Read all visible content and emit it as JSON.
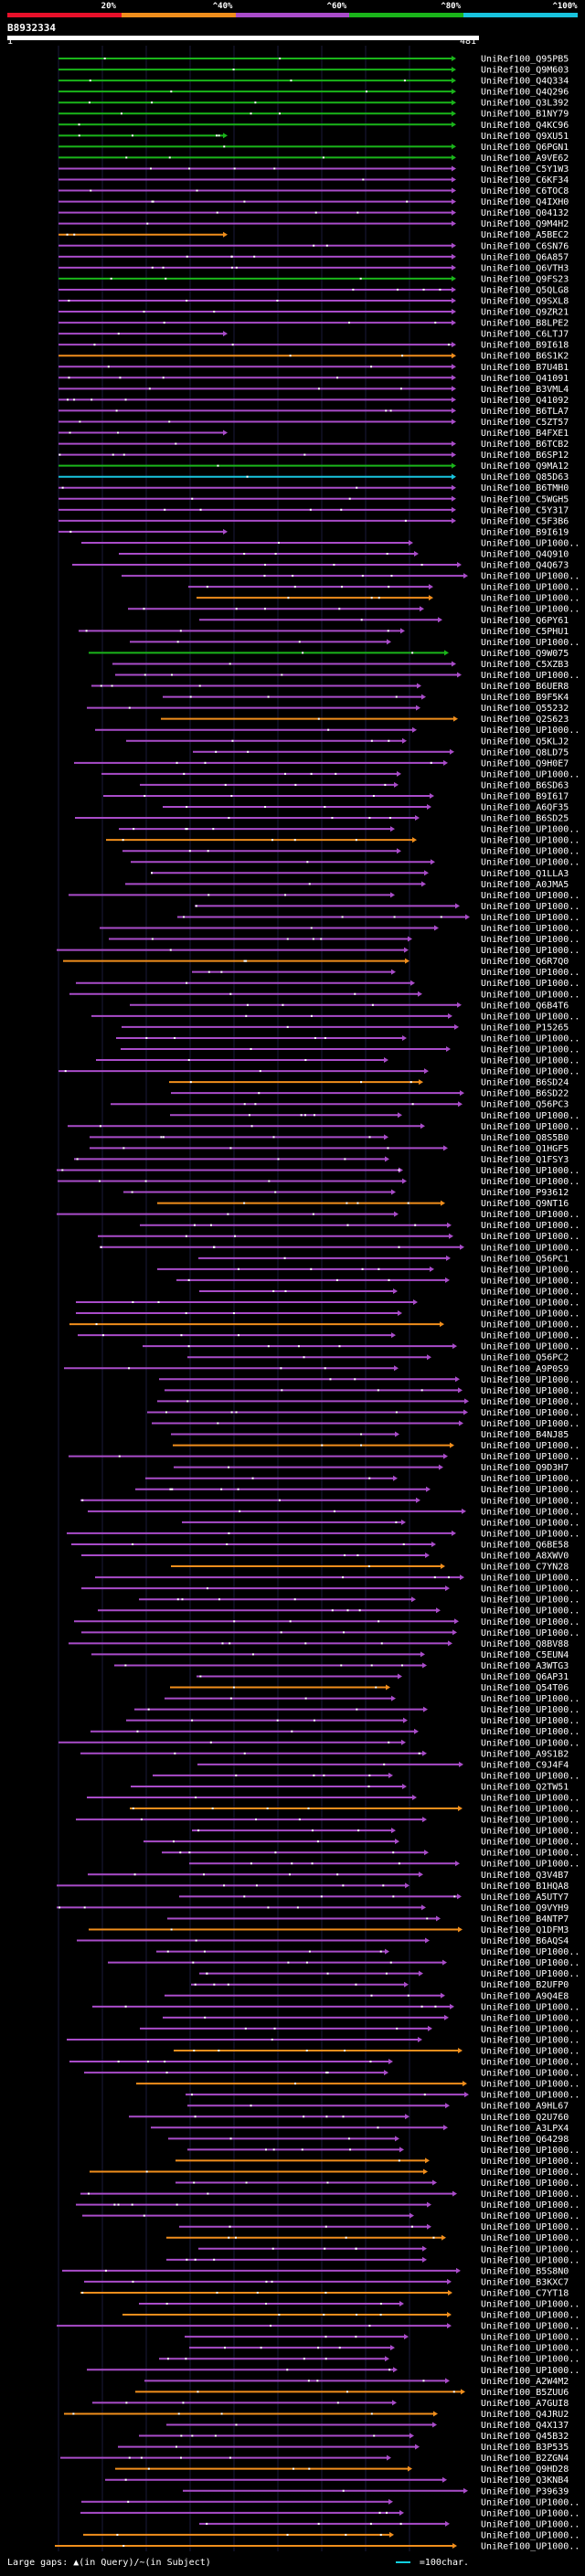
{
  "query": {
    "id": "B8932334",
    "start": "1",
    "end": "481"
  },
  "legend": {
    "labels": [
      "20%",
      "^40%",
      "^60%",
      "^80%",
      "^100%"
    ],
    "colors": [
      "#e8102a",
      "#f08e1c",
      "#a94cc9",
      "#1ab51a",
      "#18c4de"
    ]
  },
  "hits": [
    "UniRef100_Q95PB5",
    "UniRef100_Q9M603",
    "UniRef100_Q4Q334",
    "UniRef100_Q4Q296",
    "UniRef100_Q3L392",
    "UniRef100_B1NY79",
    "UniRef100_Q4KC96",
    "UniRef100_Q9XU51",
    "UniRef100_Q6PGN1",
    "UniRef100_A9VE62",
    "UniRef100_C5Y1W3",
    "UniRef100_C6KF34",
    "UniRef100_C6TOC8",
    "UniRef100_Q4IXH0",
    "UniRef100_Q04132",
    "UniRef100_Q9M4H2",
    "UniRef100_A5BEC2",
    "UniRef100_C6SN76",
    "UniRef100_Q6A857",
    "UniRef100_Q6VTH3",
    "UniRef100_Q9FS23",
    "UniRef100_Q5QLG8",
    "UniRef100_Q9SXL8",
    "UniRef100_Q9ZR21",
    "UniRef100_B8LPE2",
    "UniRef100_C6LTJ7",
    "UniRef100_B9I618",
    "UniRef100_B6S1K2",
    "UniRef100_B7U4B1",
    "UniRef100_Q41091",
    "UniRef100_B3VML4",
    "UniRef100_Q41092",
    "UniRef100_B6TLA7",
    "UniRef100_C5ZT57",
    "UniRef100_B4FXE1",
    "UniRef100_B6TCB2",
    "UniRef100_B6SP12",
    "UniRef100_Q9MA12",
    "UniRef100_Q85D63",
    "UniRef100_B6TMH0",
    "UniRef100_C5WGH5",
    "UniRef100_C5Y317",
    "UniRef100_C5F3B6",
    "UniRef100_B9I619",
    "UniRef100_UP1000..",
    "UniRef100_Q4Q910",
    "UniRef100_Q4Q673",
    "UniRef100_UP1000..",
    "UniRef100_UP1000..",
    "UniRef100_UP1000..",
    "UniRef100_UP1000..",
    "UniRef100_Q6PY61",
    "UniRef100_C5PHU1",
    "UniRef100_UP1000..",
    "UniRef100_Q9W075",
    "UniRef100_C5XZB3",
    "UniRef100_UP1000..",
    "UniRef100_B6UER8",
    "UniRef100_B9F5K4",
    "UniRef100_Q55232",
    "UniRef100_Q2S623",
    "UniRef100_UP1000..",
    "UniRef100_Q5KLJ2",
    "UniRef100_Q8LD75",
    "UniRef100_Q9H0E7",
    "UniRef100_UP1000..",
    "UniRef100_B6SD63",
    "UniRef100_B9I617",
    "UniRef100_A6QF35",
    "UniRef100_B6SD25",
    "UniRef100_UP1000..",
    "UniRef100_UP1000..",
    "UniRef100_UP1000..",
    "UniRef100_UP1000..",
    "UniRef100_Q1LLA3",
    "UniRef100_A0JMA5",
    "UniRef100_UP1000..",
    "UniRef100_UP1000..",
    "UniRef100_UP1000..",
    "UniRef100_UP1000..",
    "UniRef100_UP1000..",
    "UniRef100_UP1000..",
    "UniRef100_Q6R7Q0",
    "UniRef100_UP1000..",
    "UniRef100_UP1000..",
    "UniRef100_UP1000..",
    "UniRef100_Q6B4T6",
    "UniRef100_UP1000..",
    "UniRef100_P15265",
    "UniRef100_UP1000..",
    "UniRef100_UP1000..",
    "UniRef100_UP1000..",
    "UniRef100_UP1000..",
    "UniRef100_B6SD24",
    "UniRef100_B6SD22",
    "UniRef100_Q56PC3",
    "UniRef100_UP1000..",
    "UniRef100_UP1000..",
    "UniRef100_Q8S5B0",
    "UniRef100_Q1HGF5",
    "UniRef100_Q1FSY3",
    "UniRef100_UP1000..",
    "UniRef100_UP1000..",
    "UniRef100_P93612",
    "UniRef100_Q9NT16",
    "UniRef100_UP1000..",
    "UniRef100_UP1000..",
    "UniRef100_UP1000..",
    "UniRef100_UP1000..",
    "UniRef100_Q56PC1",
    "UniRef100_UP1000..",
    "UniRef100_UP1000..",
    "UniRef100_UP1000..",
    "UniRef100_UP1000..",
    "UniRef100_UP1000..",
    "UniRef100_UP1000..",
    "UniRef100_UP1000..",
    "UniRef100_UP1000..",
    "UniRef100_Q56PC2",
    "UniRef100_A9P0S9",
    "UniRef100_UP1000..",
    "UniRef100_UP1000..",
    "UniRef100_UP1000..",
    "UniRef100_UP1000..",
    "UniRef100_UP1000..",
    "UniRef100_B4NJ85",
    "UniRef100_UP1000..",
    "UniRef100_UP1000..",
    "UniRef100_Q9D3H7",
    "UniRef100_UP1000..",
    "UniRef100_UP1000..",
    "UniRef100_UP1000..",
    "UniRef100_UP1000..",
    "UniRef100_UP1000..",
    "UniRef100_UP1000..",
    "UniRef100_Q6BE58",
    "UniRef100_A8XWV0",
    "UniRef100_C7YN28",
    "UniRef100_UP1000..",
    "UniRef100_UP1000..",
    "UniRef100_UP1000..",
    "UniRef100_UP1000..",
    "UniRef100_UP1000..",
    "UniRef100_UP1000..",
    "UniRef100_Q8BV88",
    "UniRef100_C5EUN4",
    "UniRef100_A3WTG3",
    "UniRef100_Q6AP31",
    "UniRef100_Q54T06",
    "UniRef100_UP1000..",
    "UniRef100_UP1000..",
    "UniRef100_UP1000..",
    "UniRef100_UP1000..",
    "UniRef100_UP1000..",
    "UniRef100_A9S1B2",
    "UniRef100_C9J4F4",
    "UniRef100_UP1000..",
    "UniRef100_Q2TW51",
    "UniRef100_UP1000..",
    "UniRef100_UP1000..",
    "UniRef100_UP1000..",
    "UniRef100_UP1000..",
    "UniRef100_UP1000..",
    "UniRef100_UP1000..",
    "UniRef100_UP1000..",
    "UniRef100_Q3V4B7",
    "UniRef100_B1HQA8",
    "UniRef100_A5UTY7",
    "UniRef100_Q9VYH9",
    "UniRef100_B4NTP7",
    "UniRef100_Q1DFM3",
    "UniRef100_B6AQS4",
    "UniRef100_UP1000..",
    "UniRef100_UP1000..",
    "UniRef100_UP1000..",
    "UniRef100_B2UFP0",
    "UniRef100_A9Q4E8",
    "UniRef100_UP1000..",
    "UniRef100_UP1000..",
    "UniRef100_UP1000..",
    "UniRef100_UP1000..",
    "UniRef100_UP1000..",
    "UniRef100_UP1000..",
    "UniRef100_UP1000..",
    "UniRef100_UP1000..",
    "UniRef100_UP1000..",
    "UniRef100_A9HL67",
    "UniRef100_Q2U760",
    "UniRef100_A3LPX4",
    "UniRef100_Q64298",
    "UniRef100_UP1000..",
    "UniRef100_UP1000..",
    "UniRef100_UP1000..",
    "UniRef100_UP1000..",
    "UniRef100_UP1000..",
    "UniRef100_UP1000..",
    "UniRef100_UP1000..",
    "UniRef100_UP1000..",
    "UniRef100_UP1000..",
    "UniRef100_UP1000..",
    "UniRef100_UP1000..",
    "UniRef100_B5S8N0",
    "UniRef100_B3KXC7",
    "UniRef100_C7YT18",
    "UniRef100_UP1000..",
    "UniRef100_UP1000..",
    "UniRef100_UP1000..",
    "UniRef100_UP1000..",
    "UniRef100_UP1000..",
    "UniRef100_UP1000..",
    "UniRef100_UP1000..",
    "UniRef100_A2W4M2",
    "UniRef100_B5ZUU6",
    "UniRef100_A7GUI8",
    "UniRef100_Q4JRU2",
    "UniRef100_Q4X137",
    "UniRef100_Q45B32",
    "UniRef100_B3P535",
    "UniRef100_B2ZGN4",
    "UniRef100_Q9HD28",
    "UniRef100_Q3KNB4",
    "UniRef100_P39639",
    "UniRef100_UP1000..",
    "UniRef100_UP1000..",
    "UniRef100_UP1000..",
    "UniRef100_UP1000..",
    "UniRef100_UP1000.."
  ],
  "footer": {
    "gaps_note": "Large gaps: ▲(in Query)/~(in Subject)",
    "scale_note": "=100char."
  }
}
